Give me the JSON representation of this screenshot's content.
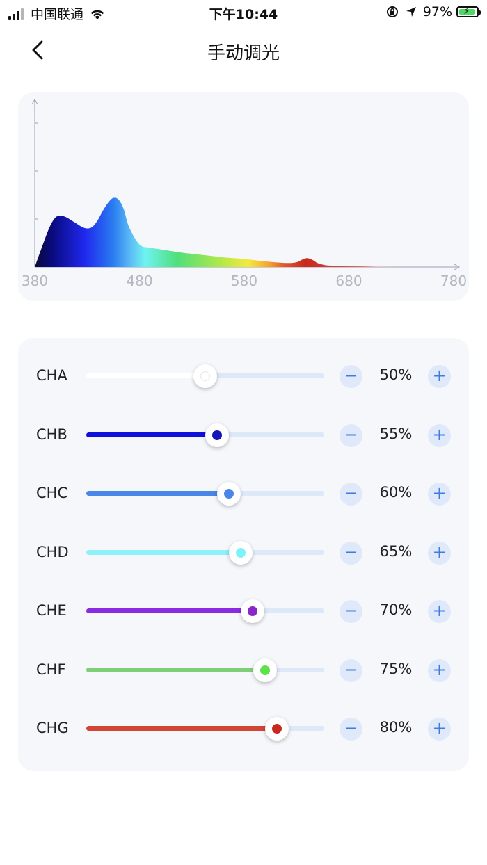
{
  "status_bar": {
    "carrier": "中国联通",
    "time": "下午10:44",
    "battery_percent": "97%",
    "battery_level": 0.97,
    "icons": [
      "signal-icon",
      "wifi-icon",
      "orientation-lock-icon",
      "location-icon",
      "battery-icon"
    ]
  },
  "nav": {
    "title": "手动调光",
    "back_icon": "chevron-left-icon"
  },
  "chart_data": {
    "type": "area",
    "x_ticks": [
      "380",
      "480",
      "580",
      "680",
      "780"
    ],
    "xlim": [
      380,
      780
    ],
    "ylim": [
      0,
      1
    ],
    "grid": false,
    "x": [
      380,
      390,
      395,
      400,
      405,
      410,
      415,
      420,
      425,
      430,
      435,
      440,
      445,
      450,
      455,
      460,
      465,
      470,
      480,
      490,
      500,
      520,
      540,
      560,
      580,
      600,
      620,
      630,
      635,
      640,
      645,
      650,
      655,
      660,
      680,
      700,
      720
    ],
    "y": [
      0,
      0.18,
      0.26,
      0.31,
      0.32,
      0.31,
      0.29,
      0.27,
      0.25,
      0.24,
      0.25,
      0.29,
      0.35,
      0.4,
      0.43,
      0.42,
      0.36,
      0.25,
      0.14,
      0.12,
      0.11,
      0.09,
      0.075,
      0.06,
      0.05,
      0.035,
      0.025,
      0.03,
      0.045,
      0.055,
      0.045,
      0.025,
      0.015,
      0.01,
      0.006,
      0.003,
      0
    ]
  },
  "controls": {
    "minus_icon": "minus-icon",
    "plus_icon": "plus-icon",
    "minus_symbol": "−",
    "plus_symbol": "+"
  },
  "channels": [
    {
      "label": "CHA",
      "value": "50%",
      "level": 0.5,
      "color": "#ffffff",
      "dot": "#ffffff"
    },
    {
      "label": "CHB",
      "value": "55%",
      "level": 0.55,
      "color": "#1010dd",
      "dot": "#1515b8"
    },
    {
      "label": "CHC",
      "value": "60%",
      "level": 0.6,
      "color": "#4a86e8",
      "dot": "#4a86e8"
    },
    {
      "label": "CHD",
      "value": "65%",
      "level": 0.65,
      "color": "#8ef0fa",
      "dot": "#7ef2fb"
    },
    {
      "label": "CHE",
      "value": "70%",
      "level": 0.7,
      "color": "#8a2be2",
      "dot": "#8a25c8"
    },
    {
      "label": "CHF",
      "value": "75%",
      "level": 0.75,
      "color": "#7fcf78",
      "dot": "#5ee24a"
    },
    {
      "label": "CHG",
      "value": "80%",
      "level": 0.8,
      "color": "#d24535",
      "dot": "#c8281e"
    }
  ]
}
